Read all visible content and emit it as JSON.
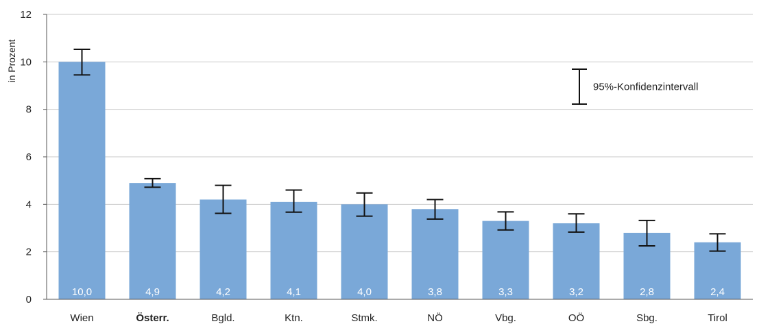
{
  "chart_data": {
    "type": "bar",
    "ylabel": "in Prozent",
    "ylim": [
      0,
      12
    ],
    "yticks": [
      0,
      2,
      4,
      6,
      8,
      10,
      12
    ],
    "grid": true,
    "categories": [
      "Wien",
      "Österr.",
      "Bgld.",
      "Ktn.",
      "Stmk.",
      "NÖ",
      "Vbg.",
      "OÖ",
      "Sbg.",
      "Tirol"
    ],
    "bold_categories": [
      "Österr."
    ],
    "values": [
      10.0,
      4.9,
      4.2,
      4.1,
      4.0,
      3.8,
      3.3,
      3.2,
      2.8,
      2.4
    ],
    "value_labels": [
      "10,0",
      "4,9",
      "4,2",
      "4,1",
      "4,0",
      "3,8",
      "3,3",
      "3,2",
      "2,8",
      "2,4"
    ],
    "ci_low": [
      9.45,
      4.72,
      3.62,
      3.67,
      3.5,
      3.38,
      2.92,
      2.83,
      2.25,
      2.03
    ],
    "ci_high": [
      10.53,
      5.08,
      4.8,
      4.6,
      4.48,
      4.2,
      3.68,
      3.6,
      3.32,
      2.76
    ],
    "legend": {
      "label": "95%-Konfidenzintervall",
      "position": "top-right"
    },
    "colors": {
      "bar": "#7aa8d8",
      "error_bar": "#111111",
      "grid": "#c8c8c8"
    }
  }
}
